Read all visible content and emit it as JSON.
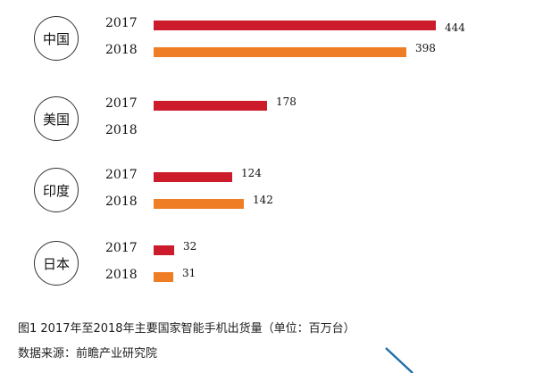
{
  "chart_data": {
    "type": "bar",
    "orientation": "horizontal",
    "groups": [
      {
        "country": "中国",
        "bars": [
          {
            "year": "2017",
            "value": 444
          },
          {
            "year": "2018",
            "value": 398
          }
        ]
      },
      {
        "country": "美国",
        "bars": [
          {
            "year": "2017",
            "value": 178
          },
          {
            "year": "2018",
            "value": null
          }
        ]
      },
      {
        "country": "印度",
        "bars": [
          {
            "year": "2017",
            "value": 124
          },
          {
            "year": "2018",
            "value": 142
          }
        ]
      },
      {
        "country": "日本",
        "bars": [
          {
            "year": "2017",
            "value": 32
          },
          {
            "year": "2018",
            "value": 31
          }
        ]
      }
    ],
    "series_colors": {
      "2017": "#cc1b2b",
      "2018": "#ee7d23"
    },
    "grid": false
  },
  "caption": "图1  2017年至2018年主要国家智能手机出货量（单位：百万台）",
  "source": "数据来源：前瞻产业研究院"
}
